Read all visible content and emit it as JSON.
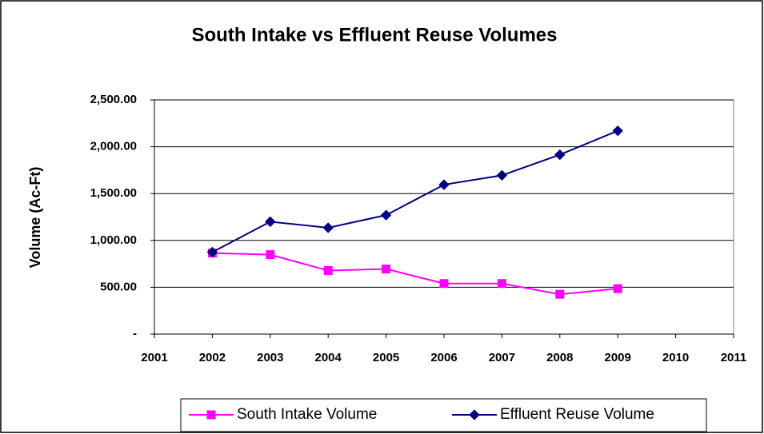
{
  "chart_data": {
    "type": "line",
    "title": "South Intake vs Effluent Reuse Volumes",
    "y_label": "Volume  (Ac-Ft)",
    "x": [
      2002,
      2003,
      2004,
      2005,
      2006,
      2007,
      2008,
      2009
    ],
    "series": [
      {
        "name": "South Intake Volume",
        "color": "#ff00ff",
        "marker": "square",
        "values": [
          865,
          848,
          678,
          695,
          540,
          540,
          425,
          485
        ]
      },
      {
        "name": "Effluent Reuse Volume",
        "color": "#000080",
        "marker": "diamond",
        "values": [
          875,
          1200,
          1135,
          1270,
          1595,
          1695,
          1915,
          2170
        ]
      }
    ],
    "xlim": [
      2001,
      2011
    ],
    "xticks": [
      2001,
      2002,
      2003,
      2004,
      2005,
      2006,
      2007,
      2008,
      2009,
      2010,
      2011
    ],
    "ylim": [
      0,
      2500
    ],
    "yticks": [
      {
        "value": 0,
        "label": "-"
      },
      {
        "value": 500,
        "label": "500.00"
      },
      {
        "value": 1000,
        "label": "1,000.00"
      },
      {
        "value": 1500,
        "label": "1,500.00"
      },
      {
        "value": 2000,
        "label": "2,000.00"
      },
      {
        "value": 2500,
        "label": "2,500.00"
      }
    ],
    "grid": true,
    "legend": "bottom"
  }
}
